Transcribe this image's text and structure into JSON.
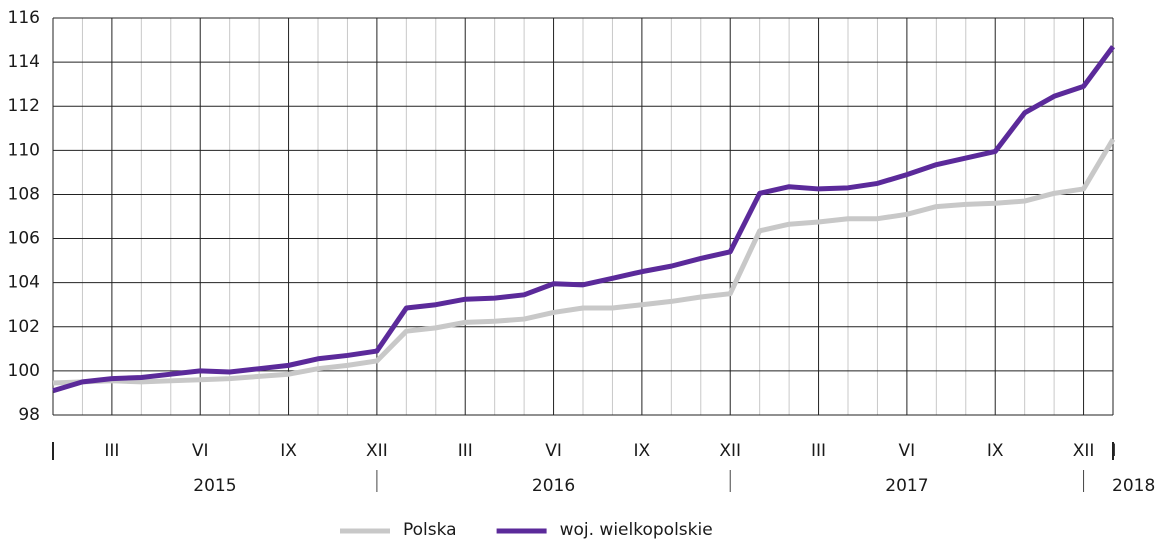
{
  "chart_data": {
    "type": "line",
    "categories": [
      "I",
      null,
      "III",
      null,
      null,
      "VI",
      null,
      null,
      "IX",
      null,
      null,
      "XII",
      null,
      null,
      "III",
      null,
      null,
      "VI",
      null,
      null,
      "IX",
      null,
      null,
      "XII",
      null,
      null,
      "III",
      null,
      null,
      "VI",
      null,
      null,
      "IX",
      null,
      null,
      "XII",
      "I"
    ],
    "years": [
      "2015",
      "2016",
      "2017",
      "2018"
    ],
    "series": [
      {
        "name": "Polska",
        "color": "#c8c8c8",
        "values": [
          99.45,
          99.5,
          99.55,
          99.5,
          99.55,
          99.6,
          99.65,
          99.75,
          99.85,
          100.1,
          100.25,
          100.45,
          101.8,
          101.95,
          102.2,
          102.25,
          102.35,
          102.65,
          102.85,
          102.85,
          103.0,
          103.15,
          103.35,
          103.5,
          106.35,
          106.65,
          106.75,
          106.9,
          106.9,
          107.1,
          107.45,
          107.55,
          107.6,
          107.7,
          108.05,
          108.25,
          110.5
        ]
      },
      {
        "name": "woj. wielkopolskie",
        "color": "#5b2a9a",
        "values": [
          99.1,
          99.5,
          99.65,
          99.7,
          99.85,
          100.0,
          99.95,
          100.1,
          100.25,
          100.55,
          100.7,
          100.9,
          102.85,
          103.0,
          103.25,
          103.3,
          103.45,
          103.95,
          103.9,
          104.2,
          104.5,
          104.75,
          105.1,
          105.4,
          108.05,
          108.35,
          108.25,
          108.3,
          108.5,
          108.9,
          109.35,
          109.65,
          109.95,
          111.7,
          112.45,
          112.9,
          114.7
        ]
      }
    ],
    "ylim": [
      98,
      116
    ],
    "yticks": [
      98,
      100,
      102,
      104,
      106,
      108,
      110,
      112,
      114,
      116
    ],
    "grid": true,
    "legend": "bottom"
  }
}
